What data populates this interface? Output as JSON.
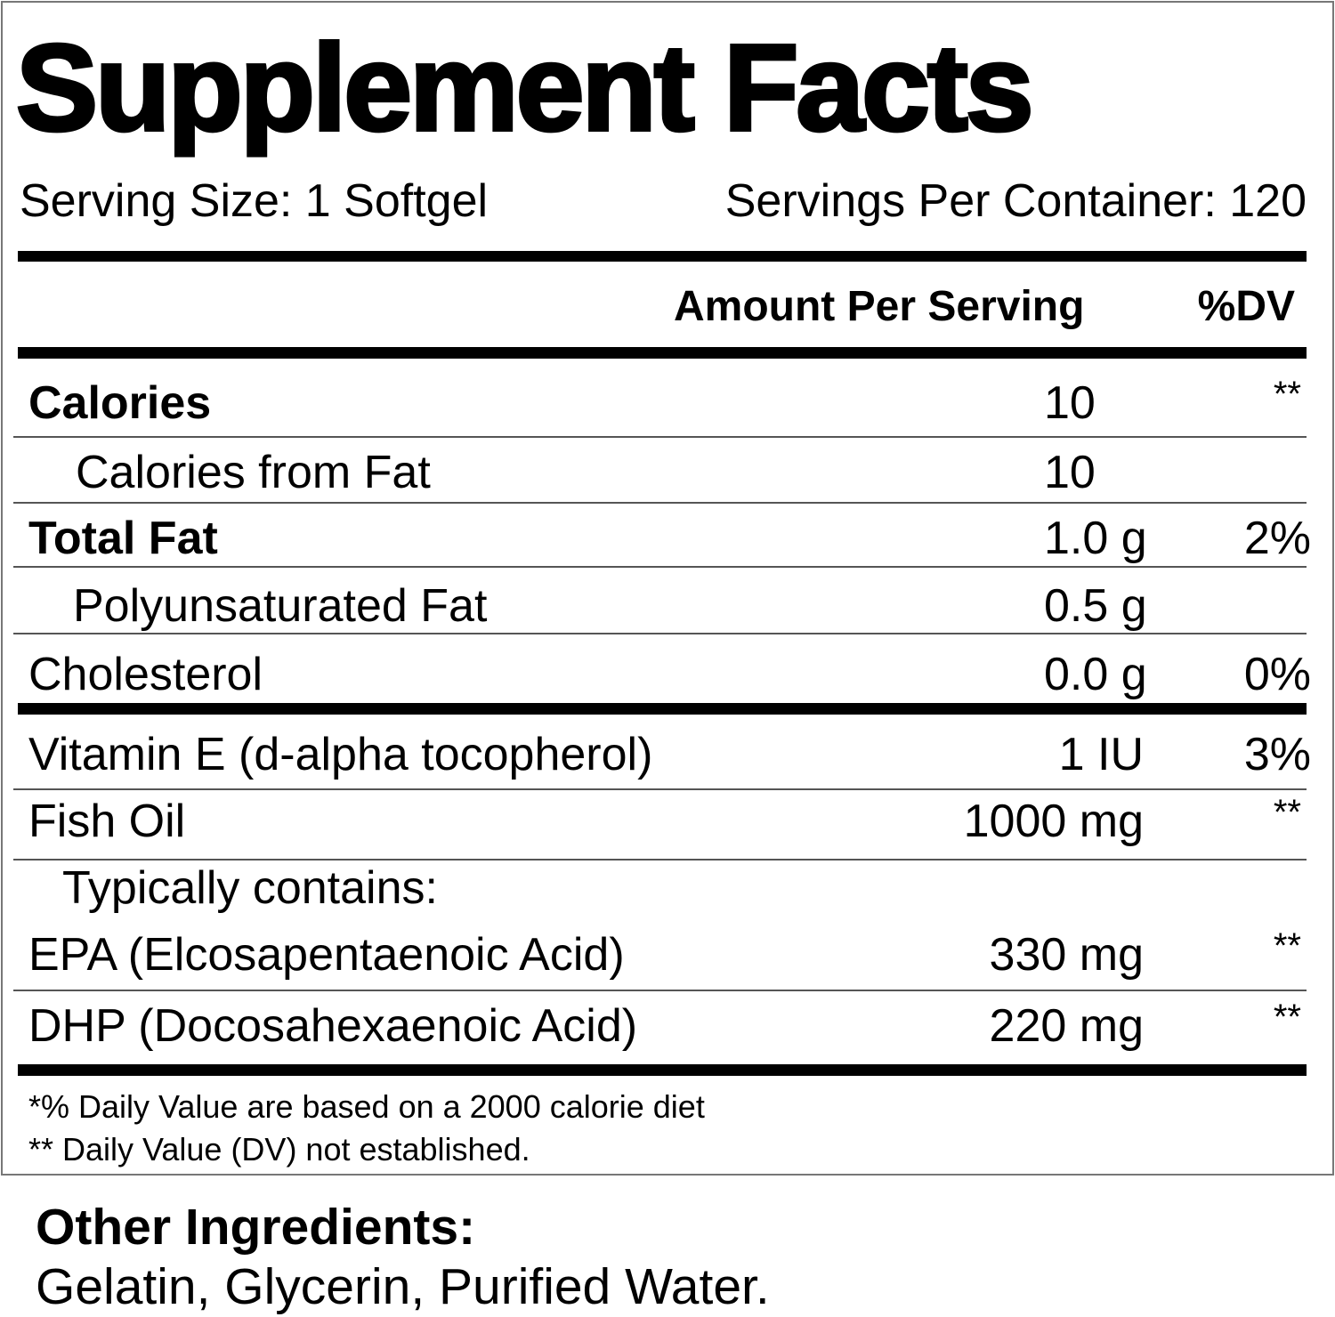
{
  "title": "Supplement Facts",
  "serving_size": "Serving Size: 1 Softgel",
  "servings_per_container": "Servings Per Container: 120",
  "header": {
    "amount": "Amount Per Serving",
    "dv": "%DV"
  },
  "rows": [
    {
      "name": "Calories",
      "amount": "10",
      "dv": "**"
    },
    {
      "name": "Calories from Fat",
      "amount": "10"
    },
    {
      "name": "Total Fat",
      "amount": "1.0 g",
      "dv": "2%"
    },
    {
      "name": "Polyunsaturated Fat",
      "amount": "0.5 g"
    },
    {
      "name": "Cholesterol",
      "amount": "0.0 g",
      "dv": "0%"
    },
    {
      "name": "Vitamin E (d-alpha tocopherol)",
      "amount": "1 IU",
      "dv": "3%"
    },
    {
      "name": "Fish Oil",
      "amount": "1000 mg",
      "dv": "**"
    },
    {
      "name": "Typically contains:"
    },
    {
      "name": "EPA (Elcosapentaenoic Acid)",
      "amount": "330 mg",
      "dv": "**"
    },
    {
      "name": "DHP (Docosahexaenoic Acid)",
      "amount": "220 mg",
      "dv": "**"
    }
  ],
  "footnotes": [
    "*% Daily Value are based on a 2000 calorie diet",
    "** Daily Value (DV) not established."
  ],
  "other_ingredients": {
    "title": "Other Ingredients:",
    "text": "Gelatin, Glycerin, Purified Water."
  }
}
